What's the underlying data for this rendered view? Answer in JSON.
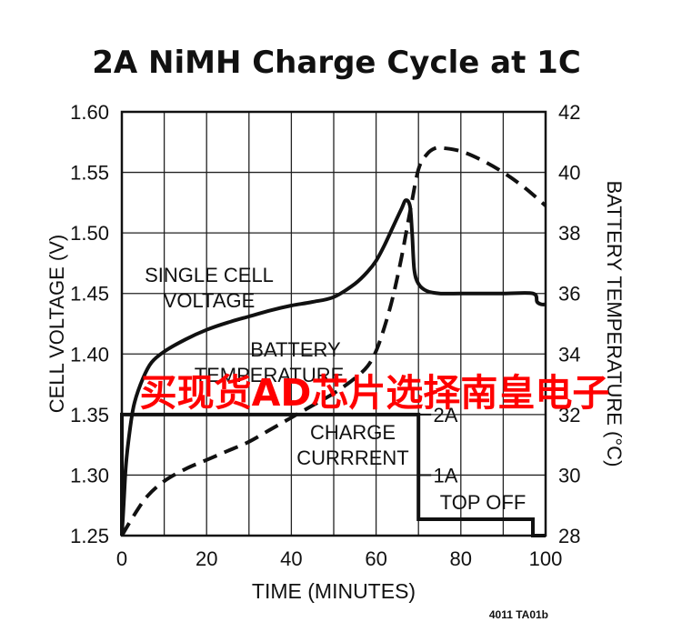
{
  "chart_data": {
    "type": "line",
    "title": "2A NiMH Charge Cycle at 1C",
    "xlabel": "TIME (MINUTES)",
    "ylabel_left": "CELL VOLTAGE (V)",
    "ylabel_right": "BATTERY TEMPERATURE (°C)",
    "xlim": [
      0,
      100
    ],
    "ylim_left": [
      1.25,
      1.6
    ],
    "ylim_right": [
      28,
      42
    ],
    "x_ticks": [
      "0",
      "20",
      "40",
      "60",
      "80",
      "100"
    ],
    "y_left_ticks": [
      "1.25",
      "1.30",
      "1.35",
      "1.40",
      "1.45",
      "1.50",
      "1.55",
      "1.60"
    ],
    "y_right_ticks": [
      "28",
      "30",
      "32",
      "34",
      "36",
      "38",
      "40",
      "42"
    ],
    "grid": true,
    "current_ticks": [
      "2A",
      "1A"
    ],
    "series": [
      {
        "name": "SINGLE CELL VOLTAGE",
        "axis": "left",
        "style": "solid",
        "x": [
          0,
          0.5,
          1,
          2,
          3,
          5,
          7,
          10,
          15,
          20,
          25,
          30,
          35,
          40,
          45,
          50,
          55,
          58,
          60,
          62,
          64,
          66,
          67,
          68,
          68.5,
          69,
          70,
          72,
          75,
          80,
          90,
          97,
          98,
          99,
          100
        ],
        "y": [
          1.25,
          1.28,
          1.31,
          1.34,
          1.36,
          1.38,
          1.393,
          1.402,
          1.412,
          1.42,
          1.426,
          1.431,
          1.436,
          1.44,
          1.443,
          1.447,
          1.458,
          1.468,
          1.477,
          1.49,
          1.505,
          1.52,
          1.527,
          1.522,
          1.5,
          1.47,
          1.458,
          1.452,
          1.45,
          1.45,
          1.45,
          1.45,
          1.443,
          1.441,
          1.441
        ]
      },
      {
        "name": "BATTERY TEMPERATURE",
        "axis": "right",
        "style": "dashed",
        "x": [
          0,
          3,
          6,
          10,
          15,
          20,
          25,
          30,
          35,
          40,
          45,
          50,
          55,
          58,
          60,
          62,
          64,
          66,
          68,
          70,
          72,
          74,
          76,
          80,
          85,
          90,
          95,
          100
        ],
        "y": [
          28.0,
          28.7,
          29.3,
          29.8,
          30.2,
          30.5,
          30.8,
          31.1,
          31.5,
          31.9,
          32.3,
          32.7,
          33.2,
          33.6,
          34.1,
          34.9,
          35.9,
          37.2,
          38.7,
          40.1,
          40.6,
          40.8,
          40.8,
          40.7,
          40.4,
          40.0,
          39.5,
          38.9
        ]
      },
      {
        "name": "CHARGE CURRRENT",
        "axis": "current",
        "style": "solid",
        "x": [
          0,
          0,
          70,
          70,
          97,
          97,
          100
        ],
        "y": [
          0,
          2,
          2,
          0.27,
          0.27,
          0,
          0
        ]
      }
    ],
    "annotations": {
      "voltage_line1": "SINGLE CELL",
      "voltage_line2": "VOLTAGE",
      "temperature_line1": "BATTERY",
      "temperature_line2": "TEMPERATURE",
      "current_line1": "CHARGE",
      "current_line2": "CURRRENT",
      "top_off": "TOP OFF"
    },
    "figure_id": "4011 TA01b"
  },
  "watermark": {
    "text": "买现货AD芯片选择南皇电子",
    "color": "#ff0000"
  }
}
